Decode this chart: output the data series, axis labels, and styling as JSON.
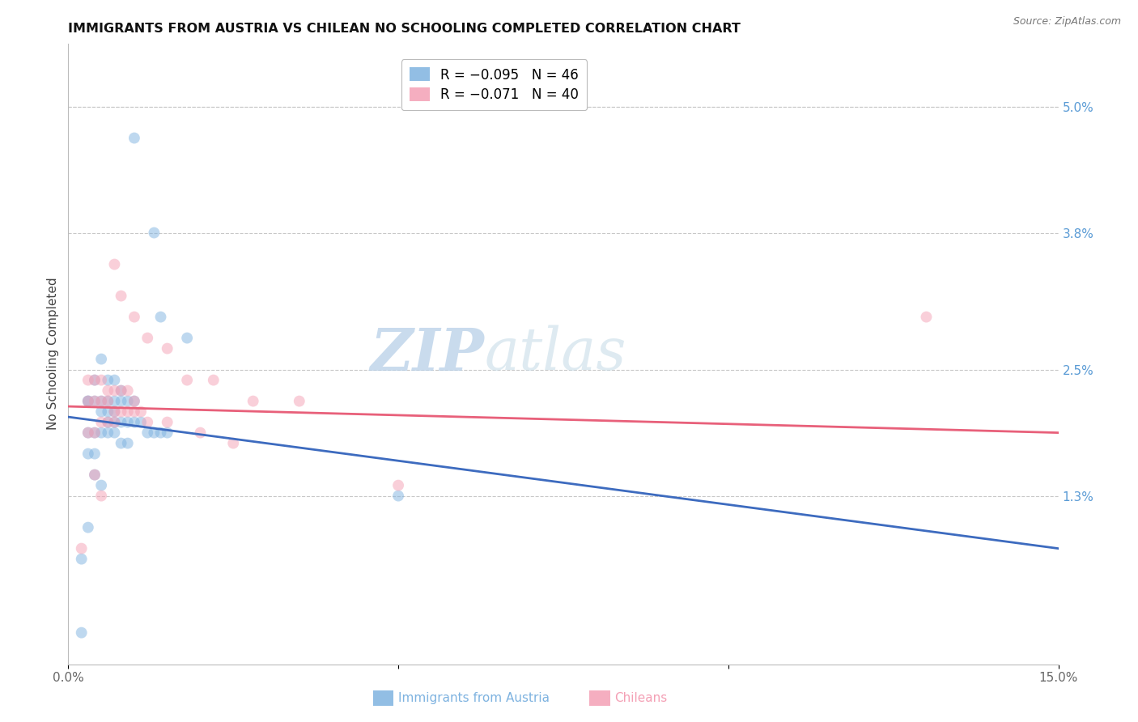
{
  "title": "IMMIGRANTS FROM AUSTRIA VS CHILEAN NO SCHOOLING COMPLETED CORRELATION CHART",
  "source": "Source: ZipAtlas.com",
  "ylabel": "No Schooling Completed",
  "right_yticks": [
    "5.0%",
    "3.8%",
    "2.5%",
    "1.3%"
  ],
  "right_ytick_vals": [
    0.05,
    0.038,
    0.025,
    0.013
  ],
  "xlim": [
    0.0,
    0.15
  ],
  "ylim": [
    -0.003,
    0.056
  ],
  "legend_blue_r": "R = −0.095",
  "legend_blue_n": "N = 46",
  "legend_pink_r": "R = −0.071",
  "legend_pink_n": "N = 40",
  "watermark_zip": "ZIP",
  "watermark_atlas": "atlas",
  "blue_color": "#7fb3e0",
  "pink_color": "#f4a0b5",
  "blue_line_color": "#3d6bbf",
  "pink_line_color": "#e8607a",
  "austria_x": [
    0.01,
    0.013,
    0.014,
    0.018,
    0.005,
    0.004,
    0.006,
    0.007,
    0.008,
    0.003,
    0.003,
    0.004,
    0.005,
    0.006,
    0.007,
    0.008,
    0.009,
    0.01,
    0.005,
    0.006,
    0.007,
    0.006,
    0.007,
    0.008,
    0.009,
    0.01,
    0.011,
    0.012,
    0.013,
    0.014,
    0.015,
    0.003,
    0.004,
    0.005,
    0.006,
    0.007,
    0.008,
    0.009,
    0.003,
    0.004,
    0.004,
    0.005,
    0.05,
    0.003,
    0.002,
    0.002
  ],
  "austria_y": [
    0.047,
    0.038,
    0.03,
    0.028,
    0.026,
    0.024,
    0.024,
    0.024,
    0.023,
    0.022,
    0.022,
    0.022,
    0.022,
    0.022,
    0.022,
    0.022,
    0.022,
    0.022,
    0.021,
    0.021,
    0.021,
    0.02,
    0.02,
    0.02,
    0.02,
    0.02,
    0.02,
    0.019,
    0.019,
    0.019,
    0.019,
    0.019,
    0.019,
    0.019,
    0.019,
    0.019,
    0.018,
    0.018,
    0.017,
    0.017,
    0.015,
    0.014,
    0.013,
    0.01,
    0.007,
    0.0
  ],
  "chilean_x": [
    0.13,
    0.007,
    0.008,
    0.01,
    0.012,
    0.015,
    0.018,
    0.022,
    0.028,
    0.035,
    0.003,
    0.004,
    0.005,
    0.006,
    0.007,
    0.008,
    0.009,
    0.01,
    0.003,
    0.004,
    0.005,
    0.006,
    0.007,
    0.008,
    0.009,
    0.01,
    0.011,
    0.005,
    0.006,
    0.007,
    0.012,
    0.015,
    0.02,
    0.025,
    0.003,
    0.004,
    0.05,
    0.004,
    0.005,
    0.002
  ],
  "chilean_y": [
    0.03,
    0.035,
    0.032,
    0.03,
    0.028,
    0.027,
    0.024,
    0.024,
    0.022,
    0.022,
    0.024,
    0.024,
    0.024,
    0.023,
    0.023,
    0.023,
    0.023,
    0.022,
    0.022,
    0.022,
    0.022,
    0.022,
    0.021,
    0.021,
    0.021,
    0.021,
    0.021,
    0.02,
    0.02,
    0.02,
    0.02,
    0.02,
    0.019,
    0.018,
    0.019,
    0.019,
    0.014,
    0.015,
    0.013,
    0.008
  ],
  "blue_line_y_start": 0.0205,
  "blue_line_y_end": 0.008,
  "pink_line_y_start": 0.0215,
  "pink_line_y_end": 0.019,
  "title_fontsize": 11.5,
  "axis_label_fontsize": 11,
  "tick_fontsize": 11,
  "legend_fontsize": 12,
  "marker_size": 100,
  "alpha": 0.5,
  "grid_color": "#c8c8c8",
  "tick_color": "#5a9bd5",
  "bottom_label_blue": "Immigrants from Austria",
  "bottom_label_pink": "Chileans"
}
